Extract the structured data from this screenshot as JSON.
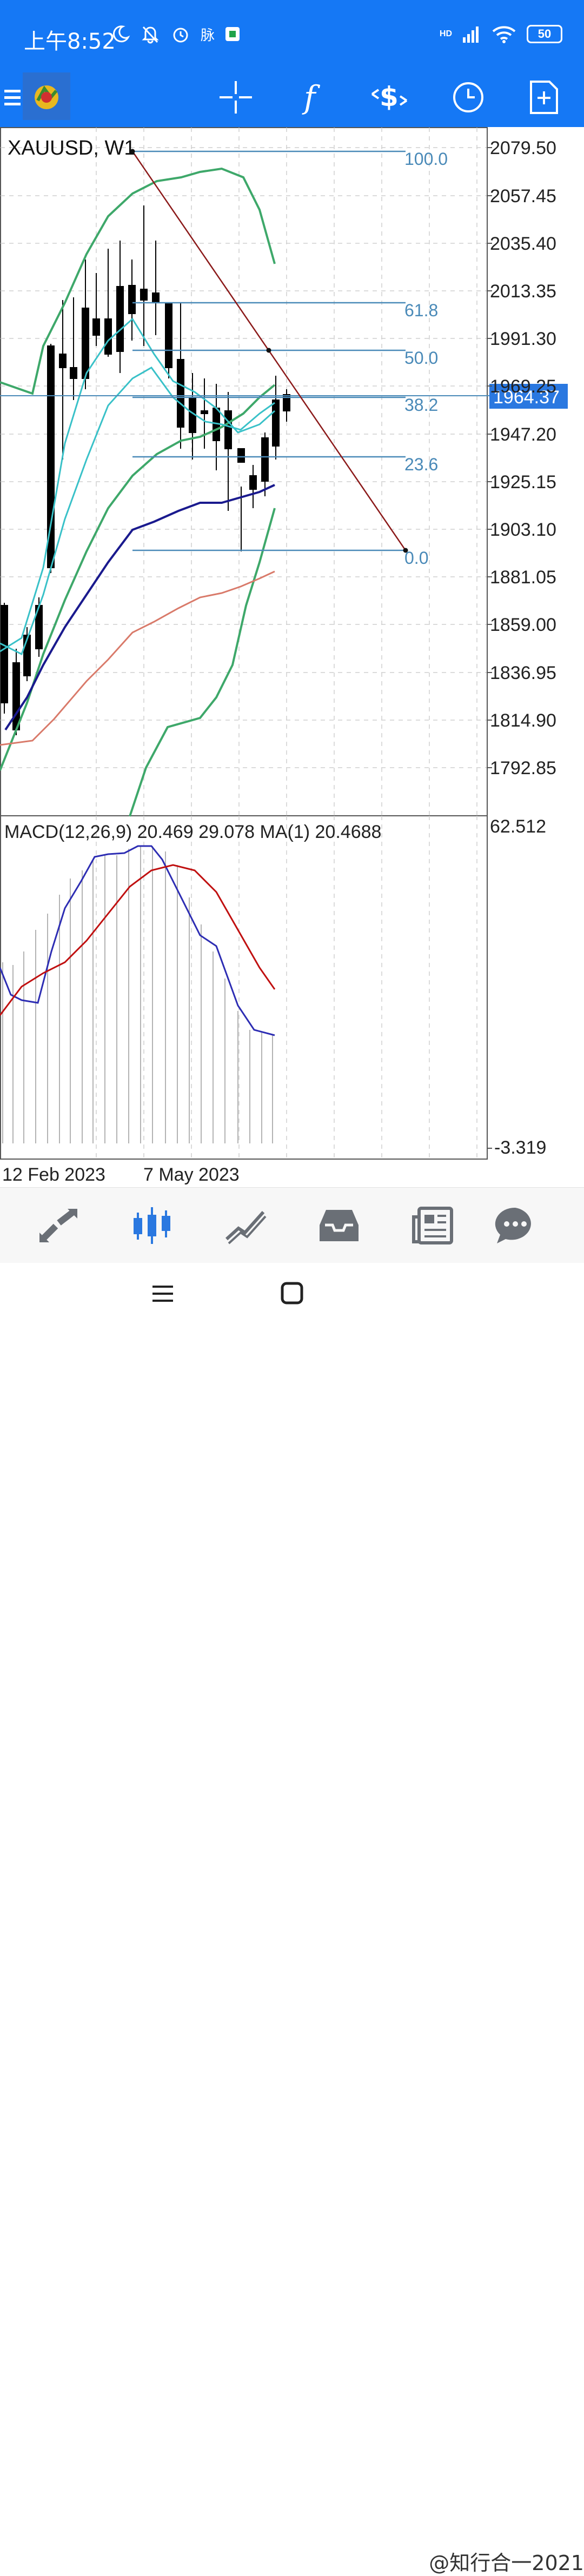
{
  "status_bar": {
    "time": "上午8:52",
    "app_badge": "脉",
    "battery": "50",
    "network": "HD"
  },
  "toolbar": {
    "tools": [
      "menu",
      "app-logo",
      "crosshair",
      "indicators",
      "trade",
      "history",
      "new-order"
    ]
  },
  "chart": {
    "symbol_label": "XAUUSD, W1",
    "current_price": "1964.37",
    "price_axis": [
      "2079.50",
      "2057.45",
      "2035.40",
      "2013.35",
      "1991.30",
      "1969.25",
      "1947.20",
      "1925.15",
      "1903.10",
      "1881.05",
      "1859.00",
      "1836.95",
      "1814.90",
      "1792.85"
    ],
    "fib_levels": [
      "100.0",
      "61.8",
      "50.0",
      "38.2",
      "23.6",
      "0.0"
    ],
    "date_axis": [
      "12 Feb 2023",
      "7 May 2023"
    ],
    "macd_label": "MACD(12,26,9) 20.469 29.078 MA(1) 20.4688",
    "macd_axis_top": "62.512",
    "macd_axis_bottom": "-3.319",
    "colors": {
      "bull_body": "#ffffff",
      "bear_body": "#000000",
      "fib": "#4a8ab8",
      "trend": "#8b1a1a",
      "bollinger": "#3ea86a",
      "ma_fast": "#39c1c8",
      "ma_slow": "#1a1a8e",
      "ma_long": "#d97a6a",
      "macd": "#2d2db3",
      "signal": "#c01010"
    }
  },
  "bottom_nav": [
    "quotes",
    "chart",
    "trade",
    "history",
    "news",
    "messages"
  ],
  "watermark": "@知行合一2021"
}
